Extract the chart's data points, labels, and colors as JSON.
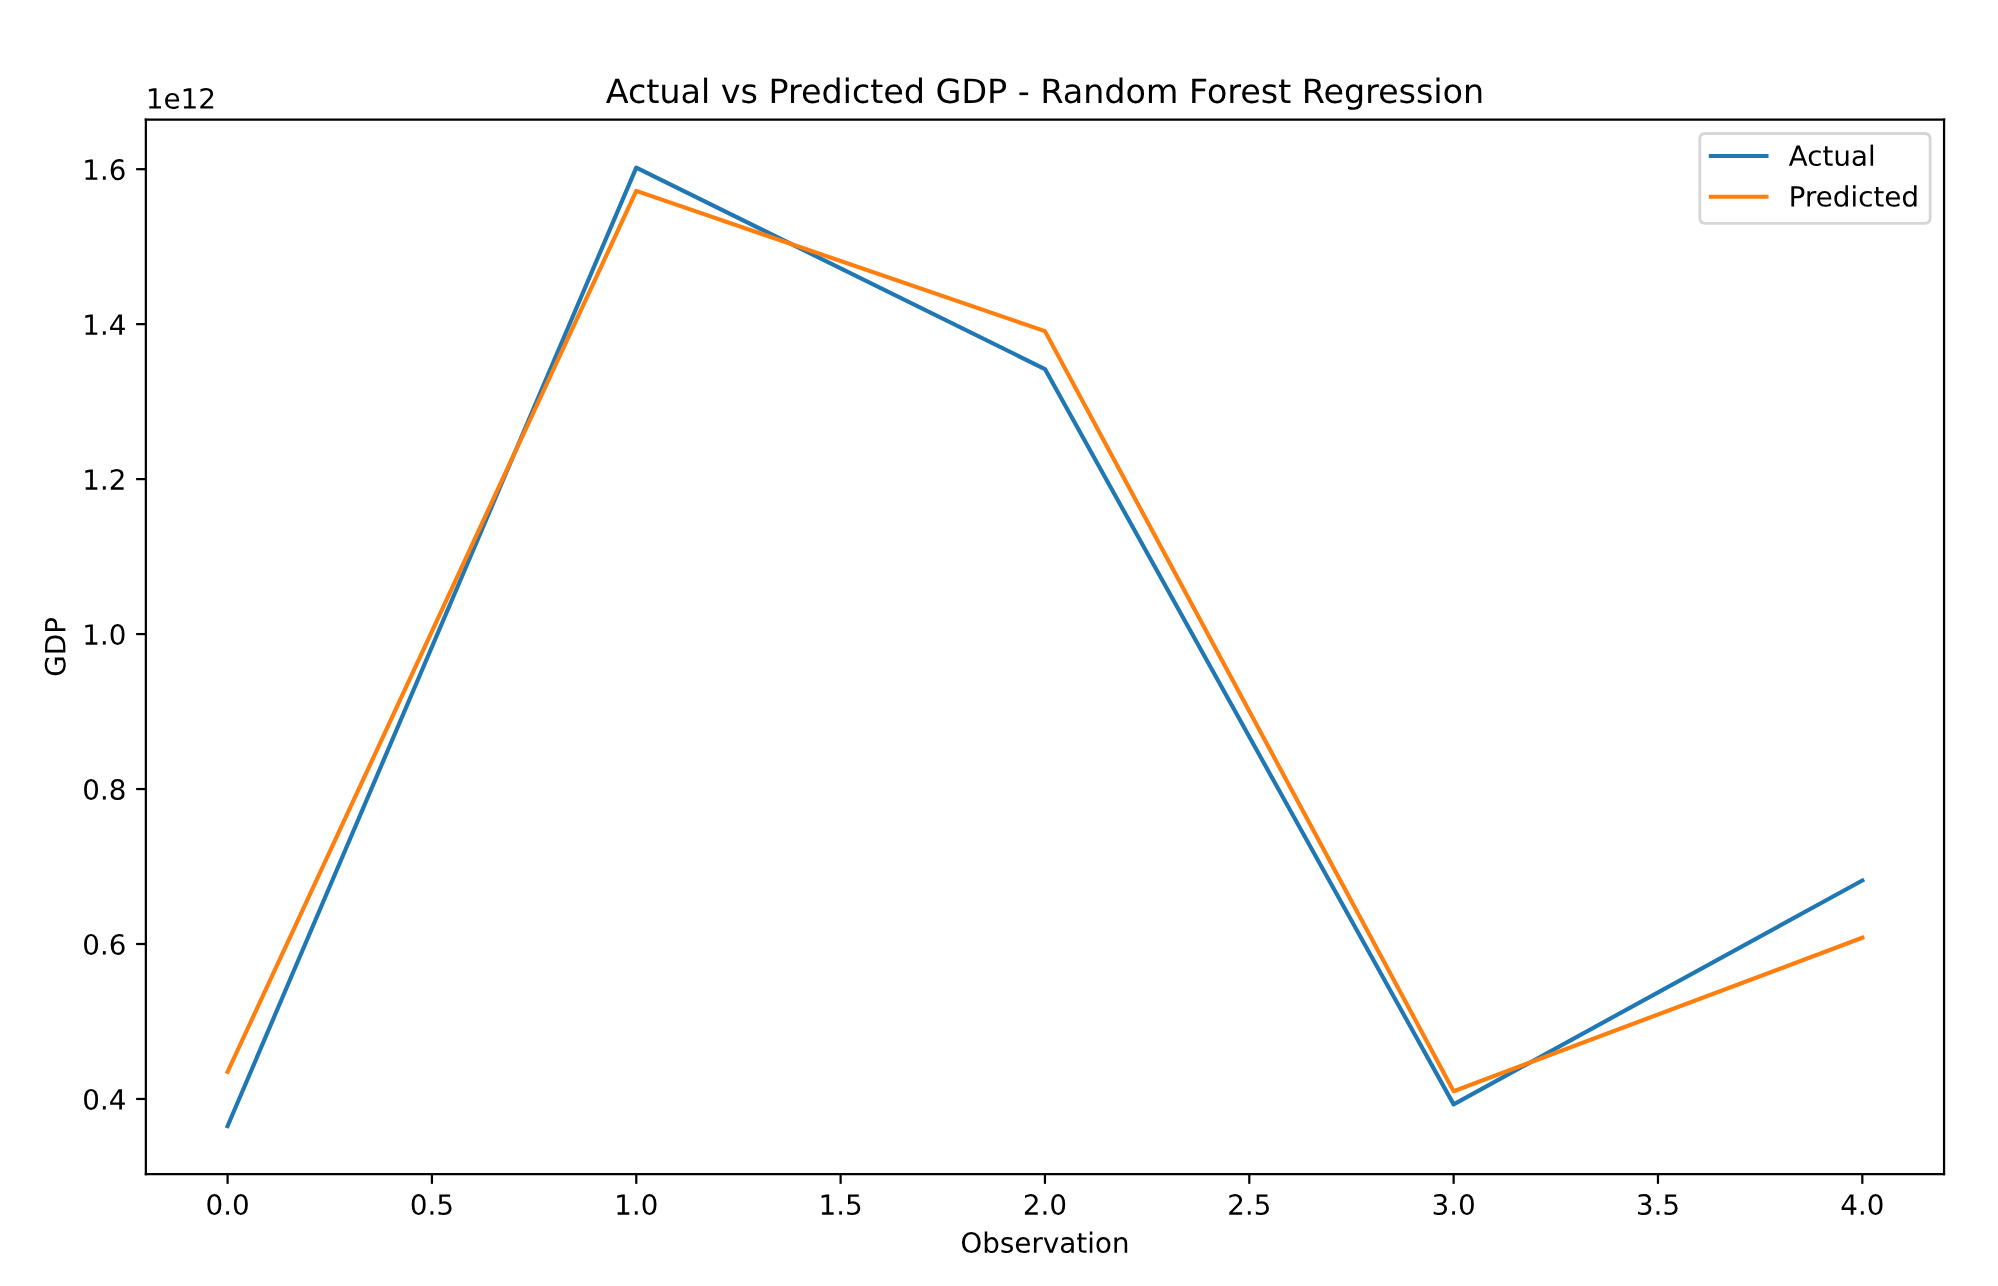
{
  "chart_data": {
    "type": "line",
    "title": "Actual vs Predicted GDP - Random Forest Regression",
    "xlabel": "Observation",
    "ylabel": "GDP",
    "x": [
      0,
      1,
      2,
      3,
      4
    ],
    "series": [
      {
        "name": "Actual",
        "color": "#1f77b4",
        "values": [
          0.365,
          1.602,
          1.342,
          0.393,
          0.682
        ]
      },
      {
        "name": "Predicted",
        "color": "#ff7f0e",
        "values": [
          0.435,
          1.572,
          1.391,
          0.41,
          0.608
        ]
      }
    ],
    "xlim": [
      -0.2,
      4.2
    ],
    "xticks": [
      {
        "value": 0,
        "label": "0.0"
      },
      {
        "value": 0.5,
        "label": "0.5"
      },
      {
        "value": 1,
        "label": "1.0"
      },
      {
        "value": 1.5,
        "label": "1.5"
      },
      {
        "value": 2,
        "label": "2.0"
      },
      {
        "value": 2.5,
        "label": "2.5"
      },
      {
        "value": 3,
        "label": "3.0"
      },
      {
        "value": 3.5,
        "label": "3.5"
      },
      {
        "value": 4,
        "label": "4.0"
      }
    ],
    "ylim": [
      0.303,
      1.664
    ],
    "yticks": [
      0.4,
      0.6,
      0.8,
      {
        "value": 1.0,
        "label": "1.0"
      },
      1.2,
      1.4,
      1.6
    ],
    "annotations": [
      "1e12"
    ],
    "legend": "top right",
    "grid": false,
    "marker": "none",
    "line_style": "solid"
  }
}
